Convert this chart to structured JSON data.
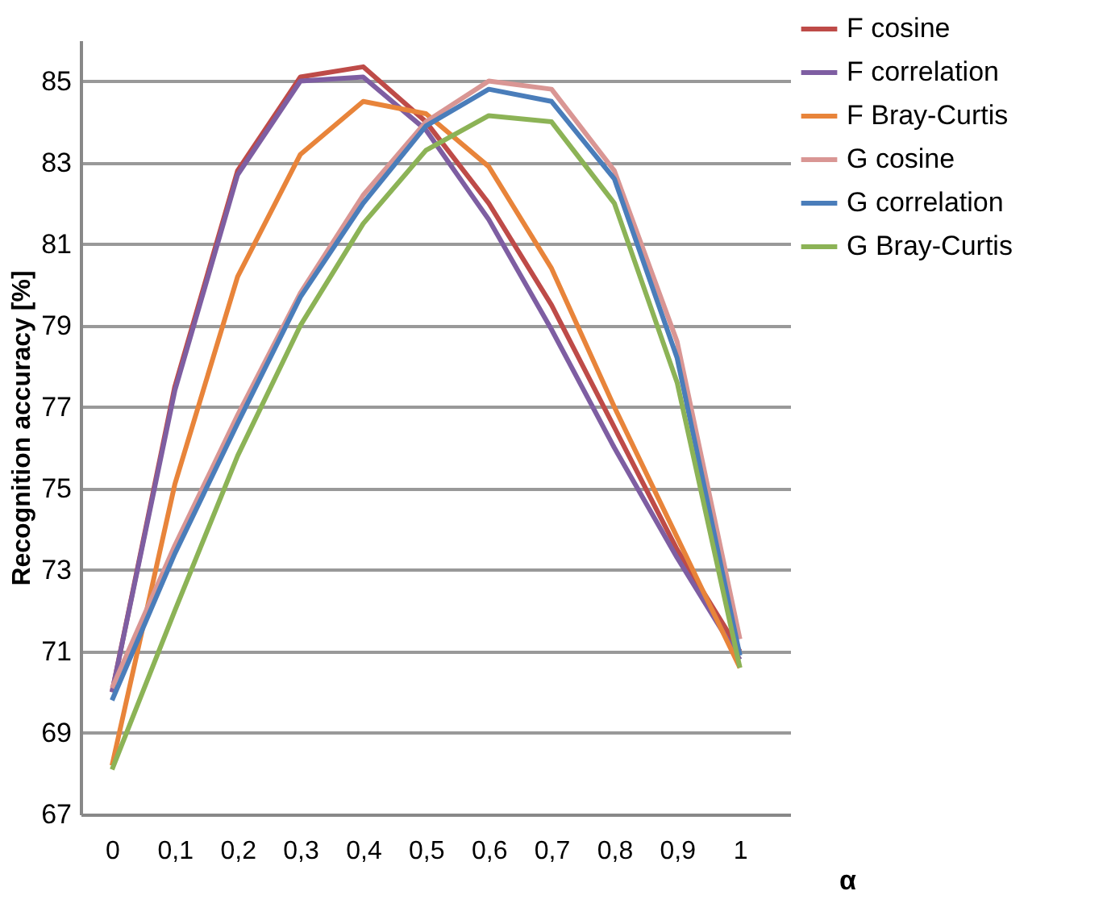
{
  "chart_data": {
    "type": "line",
    "xlabel": "α",
    "ylabel": "Recognition accuracy [%]",
    "categories": [
      "0",
      "0,1",
      "0,2",
      "0,3",
      "0,4",
      "0,5",
      "0,6",
      "0,7",
      "0,8",
      "0,9",
      "1"
    ],
    "ylim": [
      67,
      86
    ],
    "yticks": [
      67,
      69,
      71,
      73,
      75,
      77,
      79,
      81,
      83,
      85
    ],
    "grid": "y",
    "legend": "top right",
    "marker": "none",
    "line_style": "solid",
    "series": [
      {
        "name": "F cosine",
        "color": "#be4b48",
        "values": [
          70.0,
          77.5,
          82.8,
          85.1,
          85.35,
          84.0,
          82.0,
          79.5,
          76.5,
          73.5,
          71.0
        ]
      },
      {
        "name": "F correlation",
        "color": "#7e5ea2",
        "values": [
          70.0,
          77.4,
          82.7,
          85.0,
          85.1,
          83.8,
          81.6,
          78.9,
          76.0,
          73.3,
          70.8
        ]
      },
      {
        "name": "F Bray-Curtis",
        "color": "#e8843a",
        "values": [
          68.2,
          75.1,
          80.2,
          83.2,
          84.5,
          84.2,
          82.9,
          80.4,
          77.0,
          73.8,
          70.6
        ]
      },
      {
        "name": "G cosine",
        "color": "#d99694",
        "values": [
          70.1,
          73.6,
          76.8,
          79.8,
          82.2,
          84.0,
          85.0,
          84.8,
          82.8,
          78.6,
          71.3
        ]
      },
      {
        "name": "G correlation",
        "color": "#4a7dba",
        "values": [
          69.8,
          73.4,
          76.6,
          79.7,
          82.0,
          83.9,
          84.8,
          84.5,
          82.6,
          78.2,
          70.9
        ]
      },
      {
        "name": "G Bray-Curtis",
        "color": "#8cb356",
        "values": [
          68.1,
          72.0,
          75.8,
          79.0,
          81.5,
          83.3,
          84.15,
          84.0,
          82.0,
          77.6,
          70.6
        ]
      }
    ]
  }
}
